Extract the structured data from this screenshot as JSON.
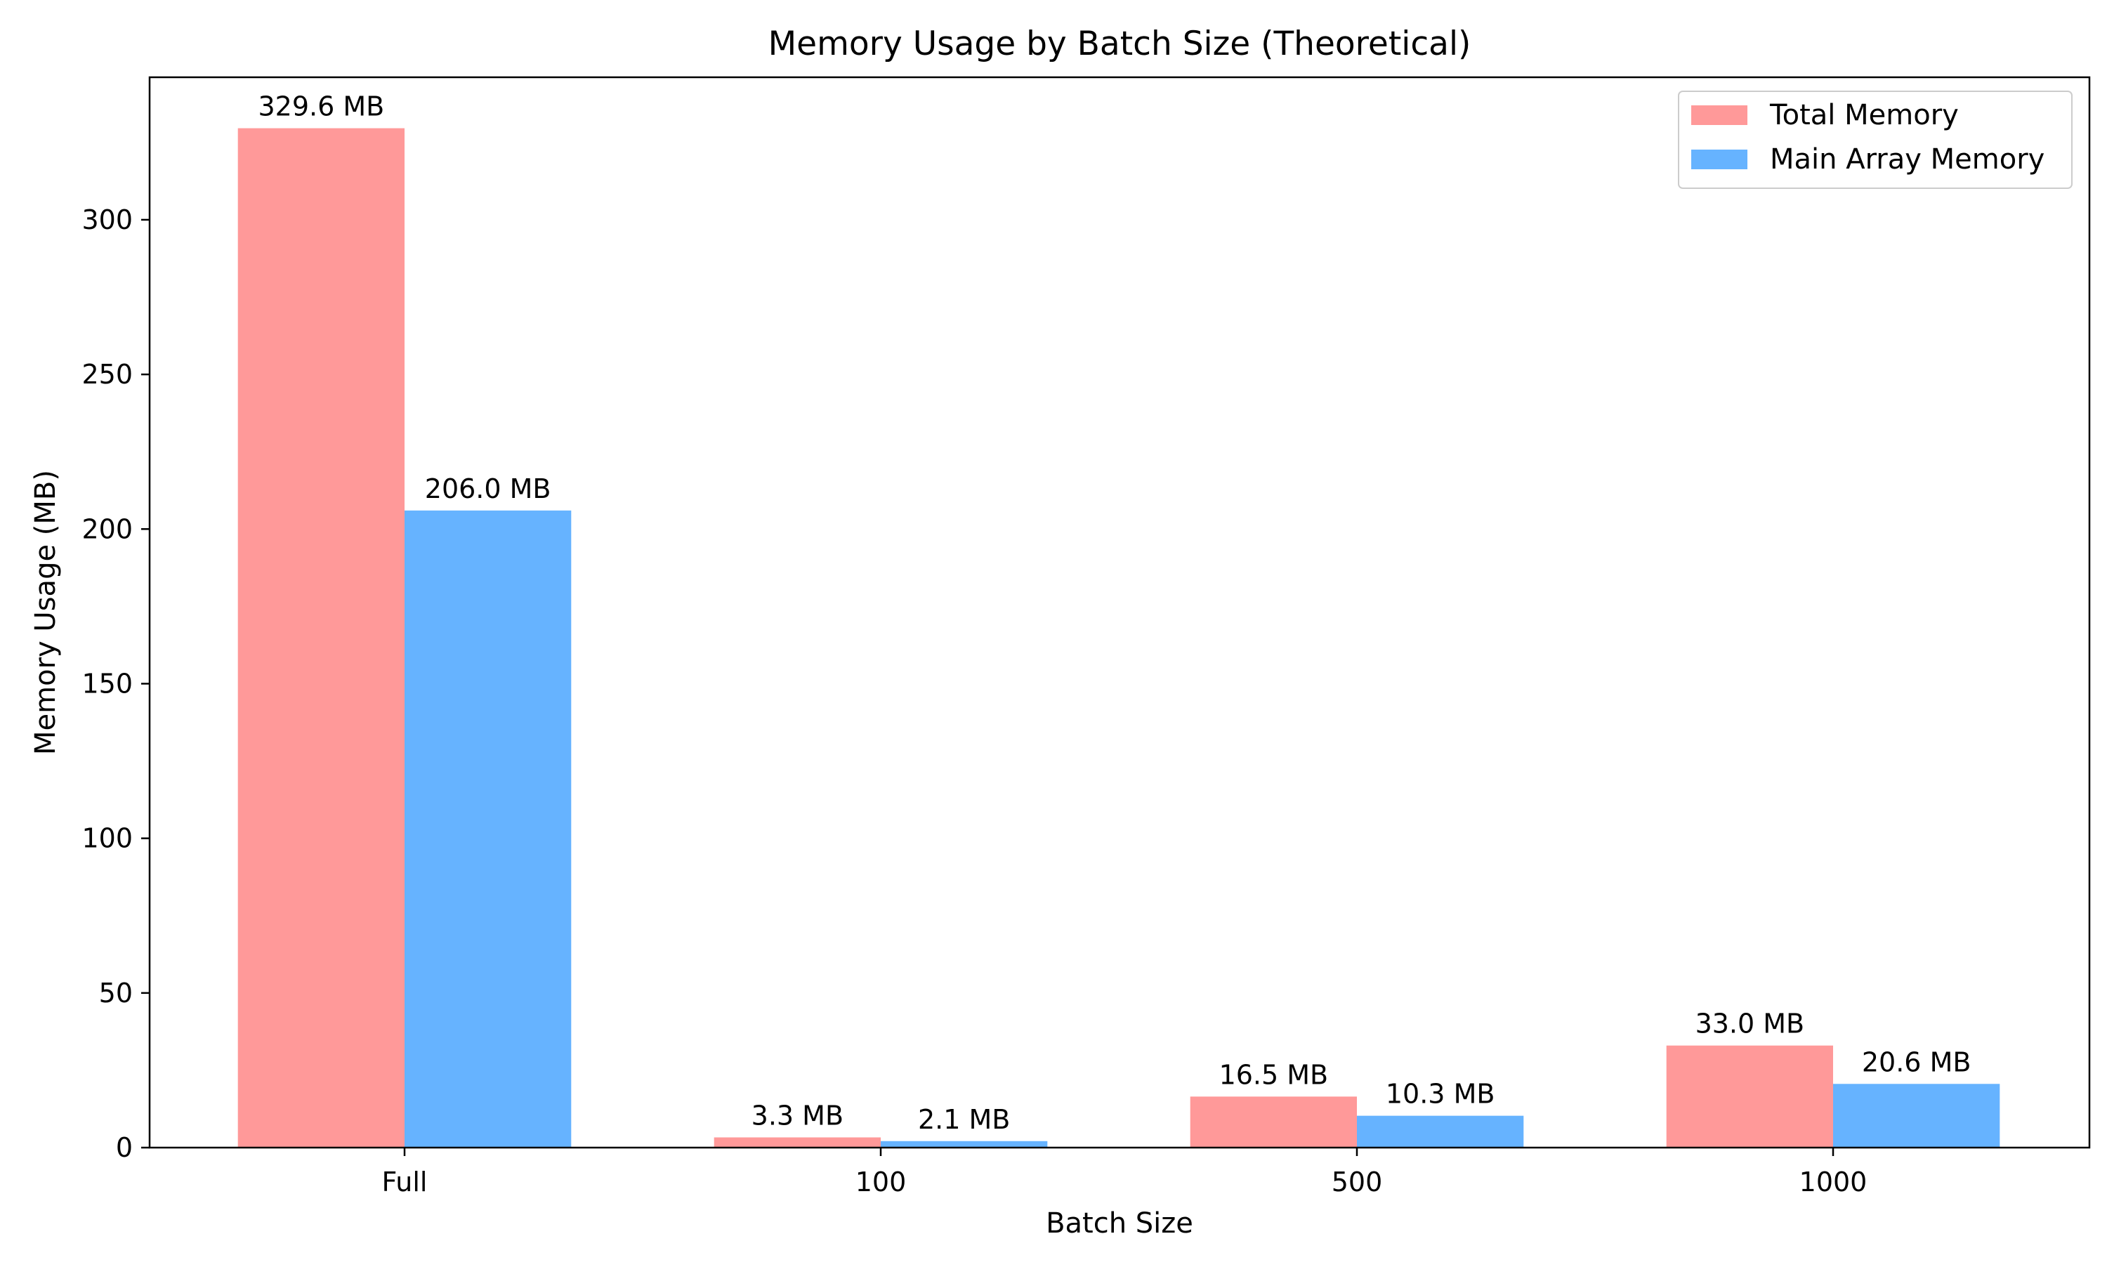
{
  "chart_data": {
    "type": "bar",
    "title": "Memory Usage by Batch Size (Theoretical)",
    "xlabel": "Batch Size",
    "ylabel": "Memory Usage (MB)",
    "categories": [
      "Full",
      "100",
      "500",
      "1000"
    ],
    "series": [
      {
        "name": "Total Memory",
        "color": "#ff9999",
        "values": [
          329.6,
          3.3,
          16.5,
          33.0
        ],
        "labels": [
          "329.6 MB",
          "3.3 MB",
          "16.5 MB",
          "33.0 MB"
        ]
      },
      {
        "name": "Main Array Memory",
        "color": "#66b3ff",
        "values": [
          206.0,
          2.1,
          10.3,
          20.6
        ],
        "labels": [
          "206.0 MB",
          "2.1 MB",
          "10.3 MB",
          "20.6 MB"
        ]
      }
    ],
    "ylim": [
      0,
      346.08
    ],
    "yticks": [
      0,
      50,
      100,
      150,
      200,
      250,
      300
    ],
    "grid": false,
    "legend_position": "top-right"
  }
}
